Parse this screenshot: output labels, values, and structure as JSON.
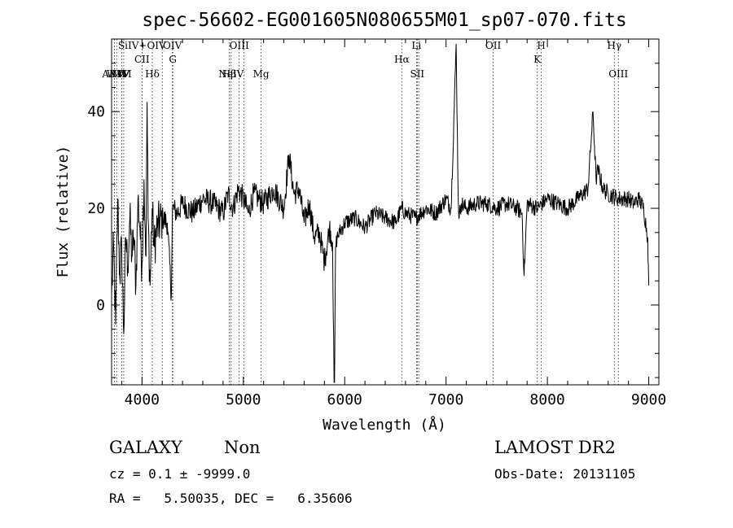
{
  "chart_data": {
    "type": "line",
    "title": "spec-56602-EG001605N080655M01_sp07-070.fits",
    "xlabel": "Wavelength (Å)",
    "ylabel": "Flux (relative)",
    "xlim": [
      3700,
      9100
    ],
    "ylim": [
      -16.5,
      55.0
    ],
    "x_ticks": [
      4000,
      5000,
      6000,
      7000,
      8000,
      9000
    ],
    "x_tick_labels": [
      "4000",
      "5000",
      "6000",
      "7000",
      "8000",
      "9000"
    ],
    "y_ticks": [
      0,
      20,
      40
    ],
    "y_tick_labels": [
      "0",
      "20",
      "40"
    ],
    "grid": false,
    "series": [
      {
        "x": [
          3700,
          3720,
          3740,
          3760,
          3780,
          3800,
          3820,
          3840,
          3860,
          3880,
          3900,
          3920,
          3940,
          3960,
          3980,
          4000,
          4020,
          4040,
          4050,
          4060,
          4080,
          4100,
          4120,
          4150,
          4200,
          4250,
          4290,
          4300,
          4350,
          4400,
          4500,
          4600,
          4700,
          4800,
          4850,
          4900,
          4950,
          5000,
          5050,
          5100,
          5150,
          5200,
          5300,
          5400,
          5450,
          5500,
          5550,
          5600,
          5650,
          5700,
          5750,
          5800,
          5850,
          5880,
          5895,
          5900,
          5910,
          5925,
          5950,
          6000,
          6100,
          6200,
          6300,
          6400,
          6500,
          6563,
          6600,
          6700,
          6800,
          6900,
          7000,
          7050,
          7100,
          7120,
          7130,
          7150,
          7200,
          7300,
          7400,
          7500,
          7600,
          7700,
          7750,
          7770,
          7800,
          7900,
          8000,
          8100,
          8200,
          8300,
          8400,
          8450,
          8480,
          8500,
          8550,
          8600,
          8700,
          8800,
          8850,
          8900,
          8950,
          8990,
          9000
        ],
        "y": [
          2,
          12,
          -4,
          22,
          6,
          12,
          -6,
          14,
          8,
          18,
          10,
          14,
          4,
          22,
          16,
          8,
          26,
          10,
          42,
          18,
          4,
          20,
          12,
          16,
          18,
          17,
          2,
          20,
          19,
          21,
          19,
          22,
          21,
          19,
          23,
          20,
          24,
          22,
          19,
          23,
          22,
          21,
          24,
          20,
          31,
          23,
          24,
          17,
          21,
          14,
          15,
          9,
          16,
          13,
          -16,
          -16,
          12,
          14,
          15,
          17,
          18,
          16,
          19,
          18,
          17,
          20,
          19,
          18,
          20,
          19,
          22,
          20,
          54,
          22,
          18,
          21,
          20,
          21,
          21,
          20,
          21,
          20,
          19,
          6,
          21,
          20,
          22,
          21,
          20,
          22,
          24,
          40,
          26,
          28,
          24,
          23,
          22,
          22,
          21,
          22,
          20,
          14,
          4
        ]
      }
    ],
    "spectral_lines": [
      {
        "wl": 3727,
        "label": "ARM",
        "row": 2
      },
      {
        "wl": 3750,
        "label": "WW",
        "row": 2
      },
      {
        "wl": 3800,
        "label": "MM",
        "row": 2
      },
      {
        "wl": 3820,
        "label": "IV",
        "row": 2
      },
      {
        "wl": 4000,
        "label": "SiIV+OIV",
        "row": 0
      },
      {
        "wl": 4000,
        "label": "CII",
        "row": 1
      },
      {
        "wl": 4102,
        "label": "Hδ",
        "row": 2
      },
      {
        "wl": 4200,
        "label": "",
        "row": -1
      },
      {
        "wl": 4300,
        "label": "OIV",
        "row": 0
      },
      {
        "wl": 4304,
        "label": "G",
        "row": 1
      },
      {
        "wl": 4861,
        "label": "Hβ",
        "row": 2
      },
      {
        "wl": 4880,
        "label": "NeIV",
        "row": 2
      },
      {
        "wl": 4959,
        "label": "OIII",
        "row": 0
      },
      {
        "wl": 5007,
        "label": "",
        "row": -1
      },
      {
        "wl": 5175,
        "label": "Mg",
        "row": 2
      },
      {
        "wl": 6563,
        "label": "Hα",
        "row": 1
      },
      {
        "wl": 6708,
        "label": "Li",
        "row": 0
      },
      {
        "wl": 6716,
        "label": "SII",
        "row": 2
      },
      {
        "wl": 6731,
        "label": "",
        "row": -1
      },
      {
        "wl": 7465,
        "label": "OII",
        "row": 0
      },
      {
        "wl": 7900,
        "label": "K",
        "row": 1
      },
      {
        "wl": 7940,
        "label": "H",
        "row": 0
      },
      {
        "wl": 8660,
        "label": "Hγ",
        "row": 0
      },
      {
        "wl": 8700,
        "label": "OIII",
        "row": 2
      }
    ]
  },
  "footer": {
    "class": "GALAXY",
    "subclass": "Non",
    "survey": "LAMOST DR2",
    "cz": "cz = 0.1 ± -9999.0",
    "obs_date": "Obs-Date: 20131105",
    "coords": "RA =   5.50035, DEC =   6.35606"
  }
}
